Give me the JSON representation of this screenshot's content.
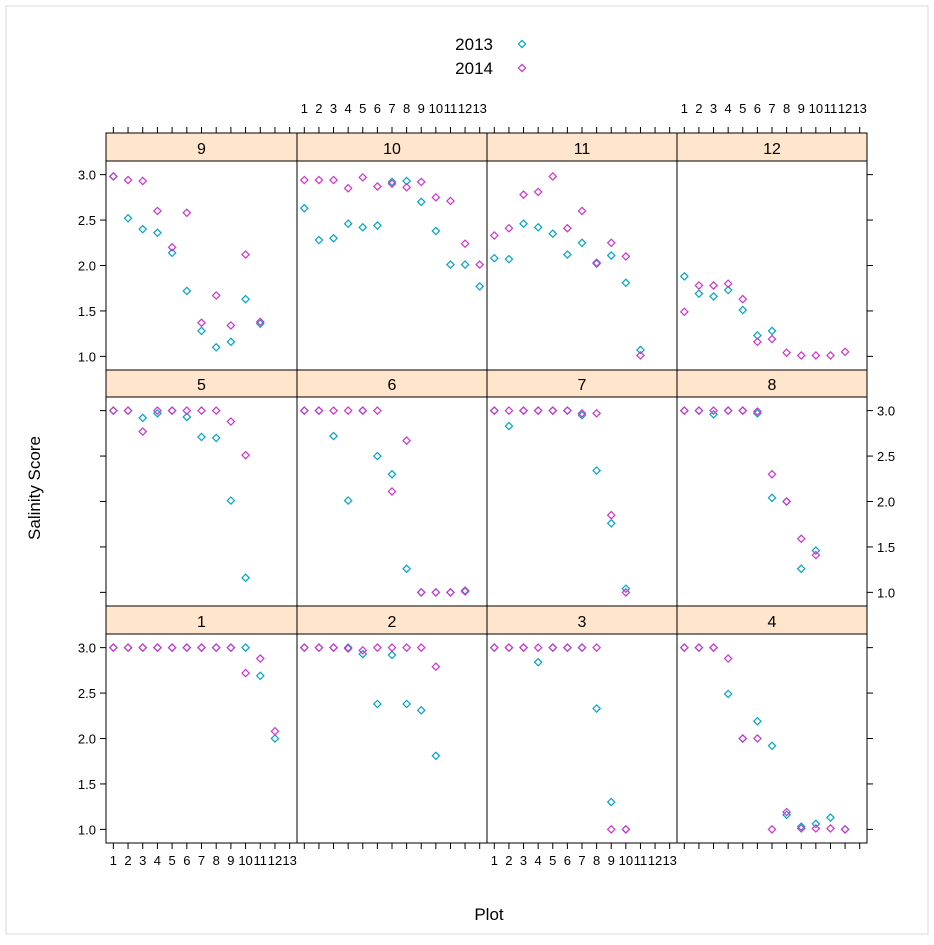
{
  "chart_data": {
    "type": "scatter",
    "layout": "trellis 4x3",
    "xlabel": "Plot",
    "ylabel": "Salinity Score",
    "x_ticks": [
      "1",
      "2",
      "3",
      "4",
      "5",
      "6",
      "7",
      "8",
      "9",
      "10",
      "11",
      "12",
      "13"
    ],
    "y_ticks": [
      "1.0",
      "1.5",
      "2.0",
      "2.5",
      "3.0"
    ],
    "ylim": [
      0.85,
      3.15
    ],
    "xlim": [
      0.5,
      13.5
    ],
    "legend": {
      "position": "top",
      "entries": [
        {
          "name": "2013",
          "color": "#00a4c8"
        },
        {
          "name": "2014",
          "color": "#d033d0"
        }
      ]
    },
    "panels": [
      {
        "label": "9",
        "row": "top",
        "col": 1,
        "series": [
          {
            "name": "2013",
            "x": [
              1,
              2,
              3,
              4,
              5,
              6,
              7,
              8,
              9,
              10,
              11
            ],
            "y": [
              2.98,
              2.52,
              2.4,
              2.36,
              2.14,
              1.72,
              1.28,
              1.1,
              1.16,
              1.63,
              1.36
            ]
          },
          {
            "name": "2014",
            "x": [
              1,
              2,
              3,
              4,
              5,
              6,
              7,
              8,
              9,
              10,
              11
            ],
            "y": [
              2.98,
              2.94,
              2.93,
              2.6,
              2.2,
              2.58,
              1.37,
              1.67,
              1.34,
              2.12,
              1.38
            ]
          }
        ]
      },
      {
        "label": "10",
        "row": "top",
        "col": 2,
        "series": [
          {
            "name": "2013",
            "x": [
              1,
              2,
              3,
              4,
              5,
              6,
              7,
              8,
              9,
              10,
              11,
              12,
              13
            ],
            "y": [
              2.63,
              2.28,
              2.3,
              2.46,
              2.42,
              2.44,
              2.92,
              2.93,
              2.7,
              2.38,
              2.01,
              2.01,
              1.77
            ]
          },
          {
            "name": "2014",
            "x": [
              1,
              2,
              3,
              4,
              5,
              6,
              7,
              8,
              9,
              10,
              11,
              12,
              13
            ],
            "y": [
              2.94,
              2.94,
              2.94,
              2.85,
              2.97,
              2.87,
              2.9,
              2.86,
              2.92,
              2.75,
              2.71,
              2.24,
              2.01
            ]
          }
        ]
      },
      {
        "label": "11",
        "row": "top",
        "col": 3,
        "series": [
          {
            "name": "2013",
            "x": [
              1,
              2,
              3,
              4,
              5,
              6,
              7,
              8,
              9,
              10,
              11
            ],
            "y": [
              2.08,
              2.07,
              2.46,
              2.42,
              2.35,
              2.12,
              2.25,
              2.02,
              2.11,
              1.81,
              1.07
            ]
          },
          {
            "name": "2014",
            "x": [
              1,
              2,
              3,
              4,
              5,
              6,
              7,
              8,
              9,
              10,
              11
            ],
            "y": [
              2.33,
              2.41,
              2.78,
              2.81,
              2.98,
              2.41,
              2.6,
              2.03,
              2.25,
              2.1,
              1.01
            ]
          }
        ]
      },
      {
        "label": "12",
        "row": "top",
        "col": 4,
        "series": [
          {
            "name": "2013",
            "x": [
              1,
              2,
              3,
              4,
              5,
              6,
              7
            ],
            "y": [
              1.88,
              1.69,
              1.66,
              1.73,
              1.51,
              1.23,
              1.28
            ]
          },
          {
            "name": "2014",
            "x": [
              1,
              2,
              3,
              4,
              5,
              6,
              7,
              8,
              9,
              10,
              11,
              12
            ],
            "y": [
              1.49,
              1.78,
              1.78,
              1.8,
              1.63,
              1.16,
              1.19,
              1.04,
              1.01,
              1.01,
              1.01,
              1.05
            ]
          }
        ]
      },
      {
        "label": "5",
        "row": "middle",
        "col": 1,
        "series": [
          {
            "name": "2013",
            "x": [
              1,
              2,
              3,
              4,
              5,
              6,
              7,
              8,
              9,
              10
            ],
            "y": [
              3.0,
              3.0,
              2.92,
              2.97,
              3.0,
              2.93,
              2.71,
              2.7,
              2.01,
              1.16
            ]
          },
          {
            "name": "2014",
            "x": [
              1,
              2,
              3,
              4,
              5,
              6,
              7,
              8,
              9,
              10
            ],
            "y": [
              3.0,
              3.0,
              2.77,
              3.0,
              3.0,
              3.0,
              3.0,
              3.0,
              2.88,
              2.51
            ]
          }
        ]
      },
      {
        "label": "6",
        "row": "middle",
        "col": 2,
        "series": [
          {
            "name": "2013",
            "x": [
              1,
              2,
              3,
              4,
              5,
              6,
              7,
              8,
              9,
              10,
              11,
              12
            ],
            "y": [
              3.0,
              3.0,
              2.72,
              2.01,
              3.0,
              2.5,
              2.3,
              1.26,
              1.0,
              1.0,
              1.0,
              1.02
            ]
          },
          {
            "name": "2014",
            "x": [
              1,
              2,
              3,
              4,
              5,
              6,
              7,
              8,
              9,
              10,
              11,
              12
            ],
            "y": [
              3.0,
              3.0,
              3.0,
              3.0,
              3.0,
              3.0,
              2.11,
              2.67,
              1.0,
              1.0,
              1.0,
              1.01
            ]
          }
        ]
      },
      {
        "label": "7",
        "row": "middle",
        "col": 3,
        "series": [
          {
            "name": "2013",
            "x": [
              1,
              2,
              3,
              4,
              5,
              6,
              7,
              8,
              9,
              10
            ],
            "y": [
              3.0,
              2.83,
              3.0,
              3.0,
              3.0,
              3.0,
              2.95,
              2.34,
              1.76,
              1.04
            ]
          },
          {
            "name": "2014",
            "x": [
              1,
              2,
              3,
              4,
              5,
              6,
              7,
              8,
              9,
              10
            ],
            "y": [
              3.0,
              3.0,
              3.0,
              3.0,
              3.0,
              3.0,
              2.97,
              2.97,
              1.85,
              1.0
            ]
          }
        ]
      },
      {
        "label": "8",
        "row": "middle",
        "col": 4,
        "series": [
          {
            "name": "2013",
            "x": [
              1,
              2,
              3,
              4,
              5,
              6,
              7,
              8,
              9,
              10
            ],
            "y": [
              3.0,
              3.0,
              2.96,
              3.0,
              3.0,
              2.97,
              2.04,
              2.0,
              1.26,
              1.46
            ]
          },
          {
            "name": "2014",
            "x": [
              1,
              2,
              3,
              4,
              5,
              6,
              7,
              8,
              9,
              10
            ],
            "y": [
              3.0,
              3.0,
              3.0,
              3.0,
              3.0,
              2.99,
              2.3,
              2.0,
              1.59,
              1.41
            ]
          }
        ]
      },
      {
        "label": "1",
        "row": "bottom",
        "col": 1,
        "series": [
          {
            "name": "2013",
            "x": [
              1,
              2,
              3,
              4,
              5,
              6,
              7,
              8,
              9,
              10,
              11,
              12
            ],
            "y": [
              3.0,
              3.0,
              3.0,
              3.0,
              3.0,
              3.0,
              3.0,
              3.0,
              3.0,
              3.0,
              2.69,
              2.0
            ]
          },
          {
            "name": "2014",
            "x": [
              1,
              2,
              3,
              4,
              5,
              6,
              7,
              8,
              9,
              10,
              11,
              12
            ],
            "y": [
              3.0,
              3.0,
              3.0,
              3.0,
              3.0,
              3.0,
              3.0,
              3.0,
              3.0,
              2.72,
              2.88,
              2.08
            ]
          }
        ]
      },
      {
        "label": "2",
        "row": "bottom",
        "col": 2,
        "series": [
          {
            "name": "2013",
            "x": [
              1,
              2,
              3,
              4,
              5,
              6,
              7,
              8,
              9,
              10
            ],
            "y": [
              3.0,
              3.0,
              3.0,
              3.0,
              2.93,
              2.38,
              2.92,
              2.38,
              2.31,
              1.81
            ]
          },
          {
            "name": "2014",
            "x": [
              1,
              2,
              3,
              4,
              5,
              6,
              7,
              8,
              9,
              10
            ],
            "y": [
              3.0,
              3.0,
              3.0,
              2.99,
              2.97,
              3.0,
              3.0,
              3.0,
              3.0,
              2.79
            ]
          }
        ]
      },
      {
        "label": "3",
        "row": "bottom",
        "col": 3,
        "series": [
          {
            "name": "2013",
            "x": [
              1,
              2,
              3,
              4,
              5,
              6,
              7,
              8,
              9,
              10
            ],
            "y": [
              3.0,
              3.0,
              3.0,
              2.84,
              3.0,
              3.0,
              3.0,
              2.33,
              1.3,
              1.0
            ]
          },
          {
            "name": "2014",
            "x": [
              1,
              2,
              3,
              4,
              5,
              6,
              7,
              8,
              9,
              10
            ],
            "y": [
              3.0,
              3.0,
              3.0,
              3.0,
              3.0,
              3.0,
              3.0,
              3.0,
              1.0,
              1.0
            ]
          }
        ]
      },
      {
        "label": "4",
        "row": "bottom",
        "col": 4,
        "series": [
          {
            "name": "2013",
            "x": [
              1,
              2,
              3,
              4,
              5,
              6,
              7,
              8,
              9,
              10,
              11,
              12
            ],
            "y": [
              3.0,
              3.0,
              3.0,
              2.49,
              2.0,
              2.19,
              1.92,
              1.16,
              1.03,
              1.06,
              1.13,
              1.0
            ]
          },
          {
            "name": "2014",
            "x": [
              1,
              2,
              3,
              4,
              5,
              6,
              7,
              8,
              9,
              10,
              11,
              12
            ],
            "y": [
              3.0,
              3.0,
              3.0,
              2.88,
              2.0,
              2.0,
              1.0,
              1.19,
              1.01,
              1.01,
              1.01,
              1.0
            ]
          }
        ]
      }
    ]
  }
}
